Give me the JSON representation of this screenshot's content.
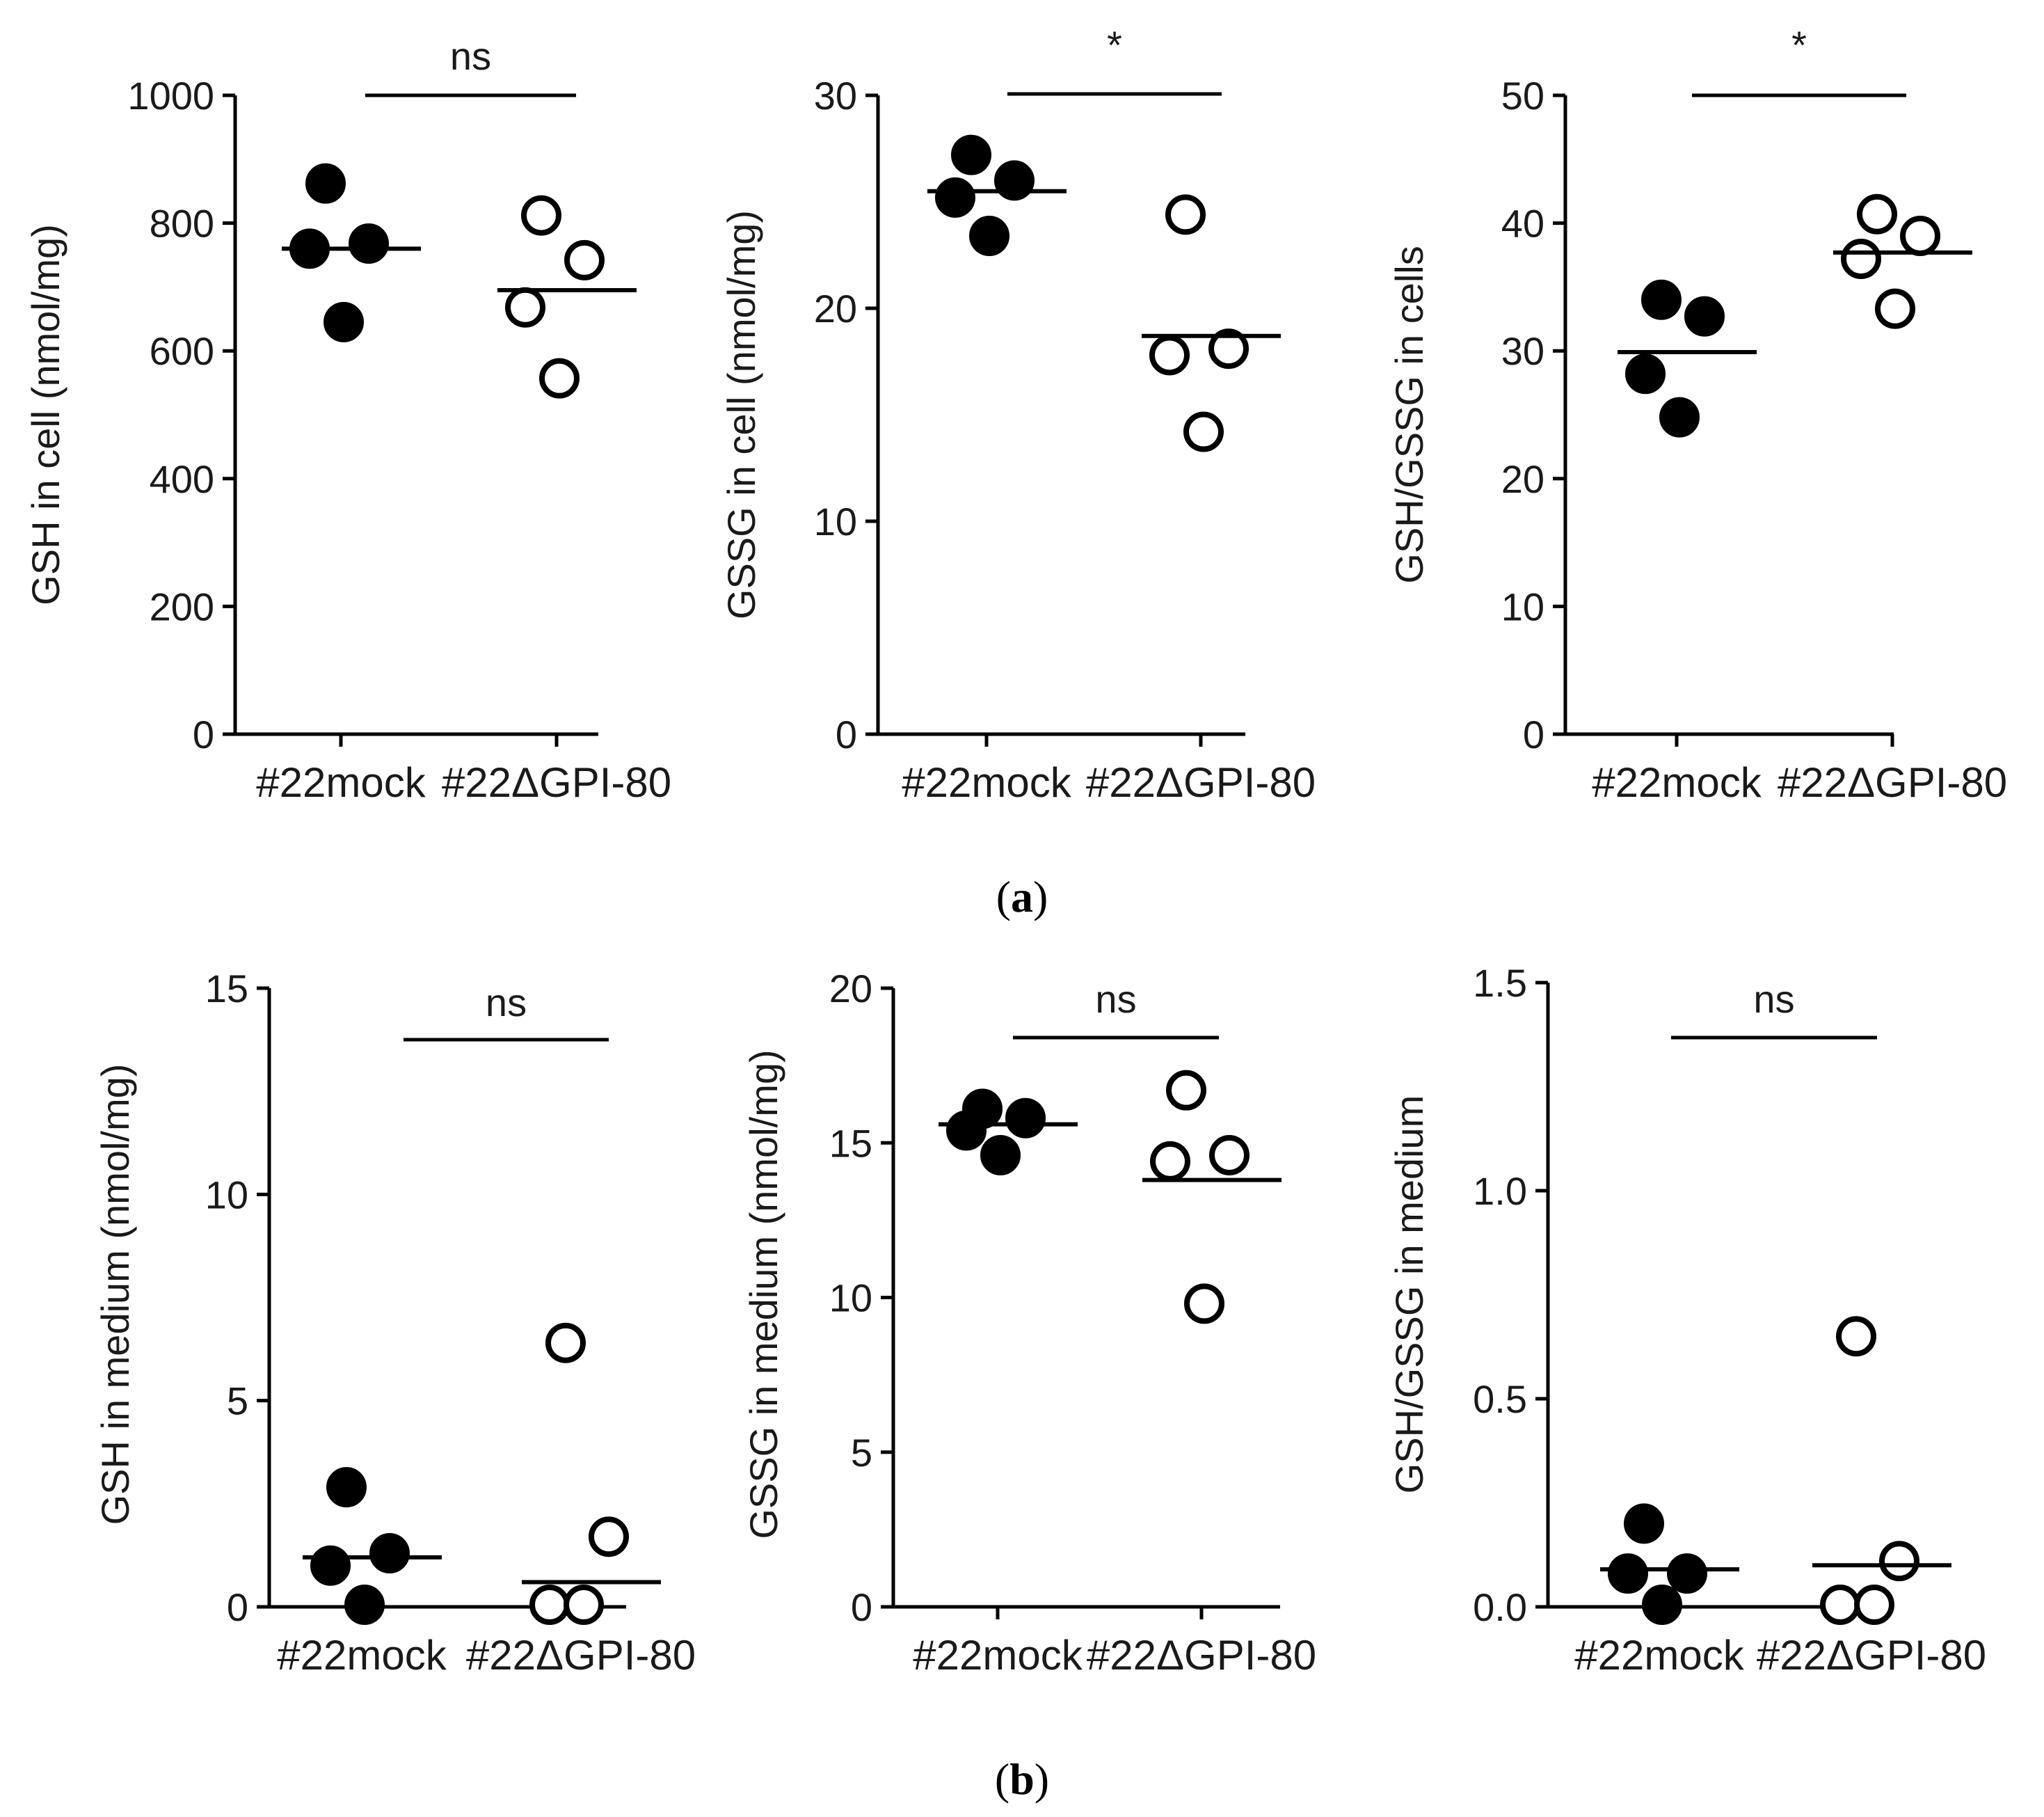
{
  "panels": [
    {
      "label_open": "(",
      "label_letter": "a",
      "label_close": ")"
    },
    {
      "label_open": "(",
      "label_letter": "b",
      "label_close": ")"
    }
  ],
  "chart_data": [
    {
      "type": "scatter",
      "id": "a1",
      "ylabel": "GSH in cell  (nmol/mg)",
      "ylim": [
        0,
        1000
      ],
      "yticks": [
        0,
        200,
        400,
        600,
        800,
        1000
      ],
      "ytick_labels": [
        "0",
        "200",
        "400",
        "600",
        "800",
        "1000"
      ],
      "categories": [
        "#22mock",
        "#22ΔGPI-80"
      ],
      "series": [
        {
          "name": "#22mock",
          "fill": "filled",
          "values": [
            862,
            768,
            760,
            645
          ],
          "mean": 760
        },
        {
          "name": "#22ΔGPI-80",
          "fill": "open",
          "values": [
            812,
            742,
            668,
            557
          ],
          "mean": 695
        }
      ],
      "significance": "ns"
    },
    {
      "type": "scatter",
      "id": "a2",
      "ylabel": "GSSG in cell (nmol/mg)",
      "ylim": [
        0,
        30
      ],
      "yticks": [
        0,
        10,
        20,
        30
      ],
      "ytick_labels": [
        "0",
        "10",
        "20",
        "30"
      ],
      "categories": [
        "#22mock",
        "#22ΔGPI-80"
      ],
      "series": [
        {
          "name": "#22mock",
          "fill": "filled",
          "values": [
            27.2,
            26.0,
            25.2,
            23.4
          ],
          "mean": 25.5
        },
        {
          "name": "#22ΔGPI-80",
          "fill": "open",
          "values": [
            24.4,
            18.1,
            17.8,
            14.2
          ],
          "mean": 18.7
        }
      ],
      "significance": "*"
    },
    {
      "type": "scatter",
      "id": "a3",
      "ylabel": "GSH/GSSG in cells",
      "ylim": [
        0,
        50
      ],
      "yticks": [
        0,
        10,
        20,
        30,
        40,
        50
      ],
      "ytick_labels": [
        "0",
        "10",
        "20",
        "30",
        "40",
        "50"
      ],
      "categories": [
        "#22mock",
        "#22ΔGPI-80"
      ],
      "series": [
        {
          "name": "#22mock",
          "fill": "filled",
          "values": [
            34.0,
            32.7,
            28.2,
            24.8
          ],
          "mean": 29.9
        },
        {
          "name": "#22ΔGPI-80",
          "fill": "open",
          "values": [
            40.7,
            39.0,
            37.2,
            33.3
          ],
          "mean": 37.7
        }
      ],
      "significance": "*"
    },
    {
      "type": "scatter",
      "id": "b1",
      "ylabel": "GSH in medium (nmol/mg)",
      "ylim": [
        0,
        15
      ],
      "yticks": [
        0,
        5,
        10,
        15
      ],
      "ytick_labels": [
        "0",
        "5",
        "10",
        "15"
      ],
      "categories": [
        "#22mock",
        "#22ΔGPI-80"
      ],
      "series": [
        {
          "name": "#22mock",
          "fill": "filled",
          "values": [
            2.9,
            1.3,
            1.0,
            0.05
          ],
          "mean": 1.2
        },
        {
          "name": "#22ΔGPI-80",
          "fill": "open",
          "values": [
            6.4,
            1.7,
            0.05,
            0.05
          ],
          "mean": 0.6
        }
      ],
      "significance": "ns"
    },
    {
      "type": "scatter",
      "id": "b2",
      "ylabel": "GSSG in medium (nmol/mg)",
      "ylim": [
        0,
        20
      ],
      "yticks": [
        0,
        5,
        10,
        15,
        20
      ],
      "ytick_labels": [
        "0",
        "5",
        "10",
        "15",
        "20"
      ],
      "categories": [
        "#22mock",
        "#22ΔGPI-80"
      ],
      "series": [
        {
          "name": "#22mock",
          "fill": "filled",
          "values": [
            16.1,
            15.8,
            15.4,
            14.6
          ],
          "mean": 15.6
        },
        {
          "name": "#22ΔGPI-80",
          "fill": "open",
          "values": [
            16.7,
            14.6,
            14.4,
            9.8
          ],
          "mean": 13.8
        }
      ],
      "significance": "ns"
    },
    {
      "type": "scatter",
      "id": "b3",
      "ylabel": "GSH/GSSG in medium",
      "ylim": [
        0,
        1.5
      ],
      "yticks": [
        0,
        0.5,
        1.0,
        1.5
      ],
      "ytick_labels": [
        "0.0",
        "0.5",
        "1.0",
        "1.5"
      ],
      "categories": [
        "#22mock",
        "#22ΔGPI-80"
      ],
      "series": [
        {
          "name": "#22mock",
          "fill": "filled",
          "values": [
            0.2,
            0.08,
            0.08,
            0.005
          ],
          "mean": 0.09
        },
        {
          "name": "#22ΔGPI-80",
          "fill": "open",
          "values": [
            0.65,
            0.11,
            0.005,
            0.005
          ],
          "mean": 0.1
        }
      ],
      "significance": "ns"
    }
  ]
}
